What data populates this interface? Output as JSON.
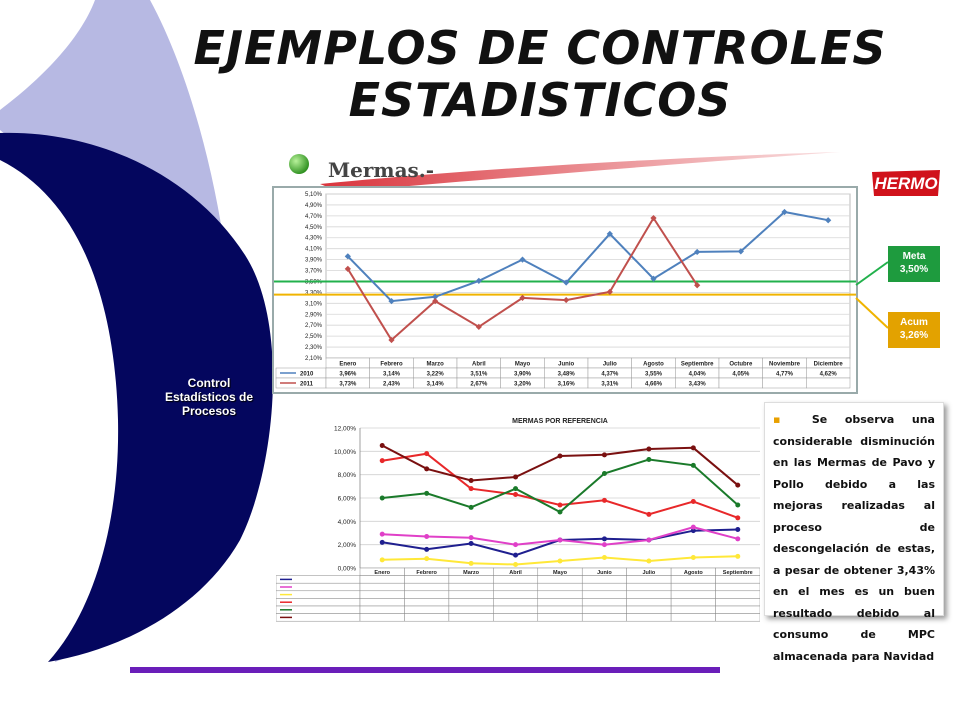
{
  "slide": {
    "title_line1": "EJEMPLOS DE CONTROLES",
    "title_line2": "ESTADISTICOS",
    "side_label_line1": "Control",
    "side_label_line2": "Estadísticos de",
    "side_label_line3": "Procesos",
    "section_heading": "Mermas.-",
    "brand_name": "HERMO",
    "meta_label": "Meta",
    "meta_value": "3,50%",
    "acum_label": "Acum",
    "acum_value": "3,26%",
    "note": "Se observa una considerable disminución en las Mermas de Pavo y Pollo debido a las mejoras realizadas al proceso de descongelación de estas, a pesar de obtener 3,43% en el mes es un buen resultado debido al consumo de MPC almacenada para Navidad",
    "colors": {
      "side_navy": "#04065e",
      "side_light": "#b7b9e3",
      "accent_purple": "#6a1eb9",
      "meta_green": "#1e9b3e",
      "acum_orange": "#e3a200"
    }
  },
  "chart_data": [
    {
      "type": "line",
      "title": "",
      "categories": [
        "Enero",
        "Febrero",
        "Marzo",
        "Abril",
        "Mayo",
        "Junio",
        "Julio",
        "Agosto",
        "Septiembre",
        "Octubre",
        "Noviembre",
        "Diciembre"
      ],
      "y_ticks": [
        "2,10%",
        "2,30%",
        "2,50%",
        "2,70%",
        "2,90%",
        "3,10%",
        "3,30%",
        "3,50%",
        "3,70%",
        "3,90%",
        "4,10%",
        "4,30%",
        "4,50%",
        "4,70%",
        "4,90%",
        "5,10%"
      ],
      "ylim": [
        2.1,
        5.1
      ],
      "grid": true,
      "legend_position": "bottom-table",
      "reference_lines": [
        {
          "name": "Meta",
          "value": 3.5,
          "color": "#22b14c"
        },
        {
          "name": "Acum",
          "value": 3.26,
          "color": "#f0b400"
        }
      ],
      "series": [
        {
          "name": "2010",
          "color": "#4f81bd",
          "values": [
            3.96,
            3.14,
            3.22,
            3.51,
            3.9,
            3.48,
            4.37,
            3.55,
            4.04,
            4.05,
            4.77,
            4.62
          ],
          "labels": [
            "3,96%",
            "3,14%",
            "3,22%",
            "3,51%",
            "3,90%",
            "3,48%",
            "4,37%",
            "3,55%",
            "4,04%",
            "4,05%",
            "4,77%",
            "4,62%"
          ]
        },
        {
          "name": "2011",
          "color": "#c0504d",
          "values": [
            3.73,
            2.43,
            3.14,
            2.67,
            3.2,
            3.16,
            3.31,
            4.66,
            3.43,
            null,
            null,
            null
          ],
          "labels": [
            "3,73%",
            "2,43%",
            "3,14%",
            "2,67%",
            "3,20%",
            "3,16%",
            "3,31%",
            "4,66%",
            "3,43%",
            "",
            "",
            ""
          ]
        }
      ]
    },
    {
      "type": "line",
      "title": "MERMAS POR REFERENCIA",
      "categories": [
        "Enero",
        "Febrero",
        "Marzo",
        "Abril",
        "Mayo",
        "Junio",
        "Julio",
        "Agosto",
        "Septiembre"
      ],
      "y_ticks": [
        "0,00%",
        "2,00%",
        "4,00%",
        "6,00%",
        "8,00%",
        "10,00%",
        "12,00%"
      ],
      "ylim": [
        0,
        12
      ],
      "grid": true,
      "legend_position": "bottom-table",
      "series": [
        {
          "color": "#1f1f8f",
          "values": [
            2.2,
            1.6,
            2.1,
            1.1,
            2.4,
            2.5,
            2.4,
            3.2,
            3.3
          ]
        },
        {
          "color": "#e040c8",
          "values": [
            2.9,
            2.7,
            2.6,
            2.0,
            2.4,
            2.0,
            2.4,
            3.5,
            2.5
          ]
        },
        {
          "color": "#ffe838",
          "values": [
            0.7,
            0.8,
            0.4,
            0.3,
            0.6,
            0.9,
            0.6,
            0.9,
            1.0
          ]
        },
        {
          "color": "#e8282a",
          "values": [
            9.2,
            9.8,
            6.8,
            6.3,
            5.4,
            5.8,
            4.6,
            5.7,
            4.3
          ]
        },
        {
          "color": "#1a7a2a",
          "values": [
            6.0,
            6.4,
            5.2,
            6.8,
            4.8,
            8.1,
            9.3,
            8.8,
            5.4
          ]
        },
        {
          "color": "#7a1010",
          "values": [
            10.5,
            8.5,
            7.5,
            7.8,
            9.6,
            9.7,
            10.2,
            10.3,
            7.1
          ]
        }
      ]
    }
  ]
}
